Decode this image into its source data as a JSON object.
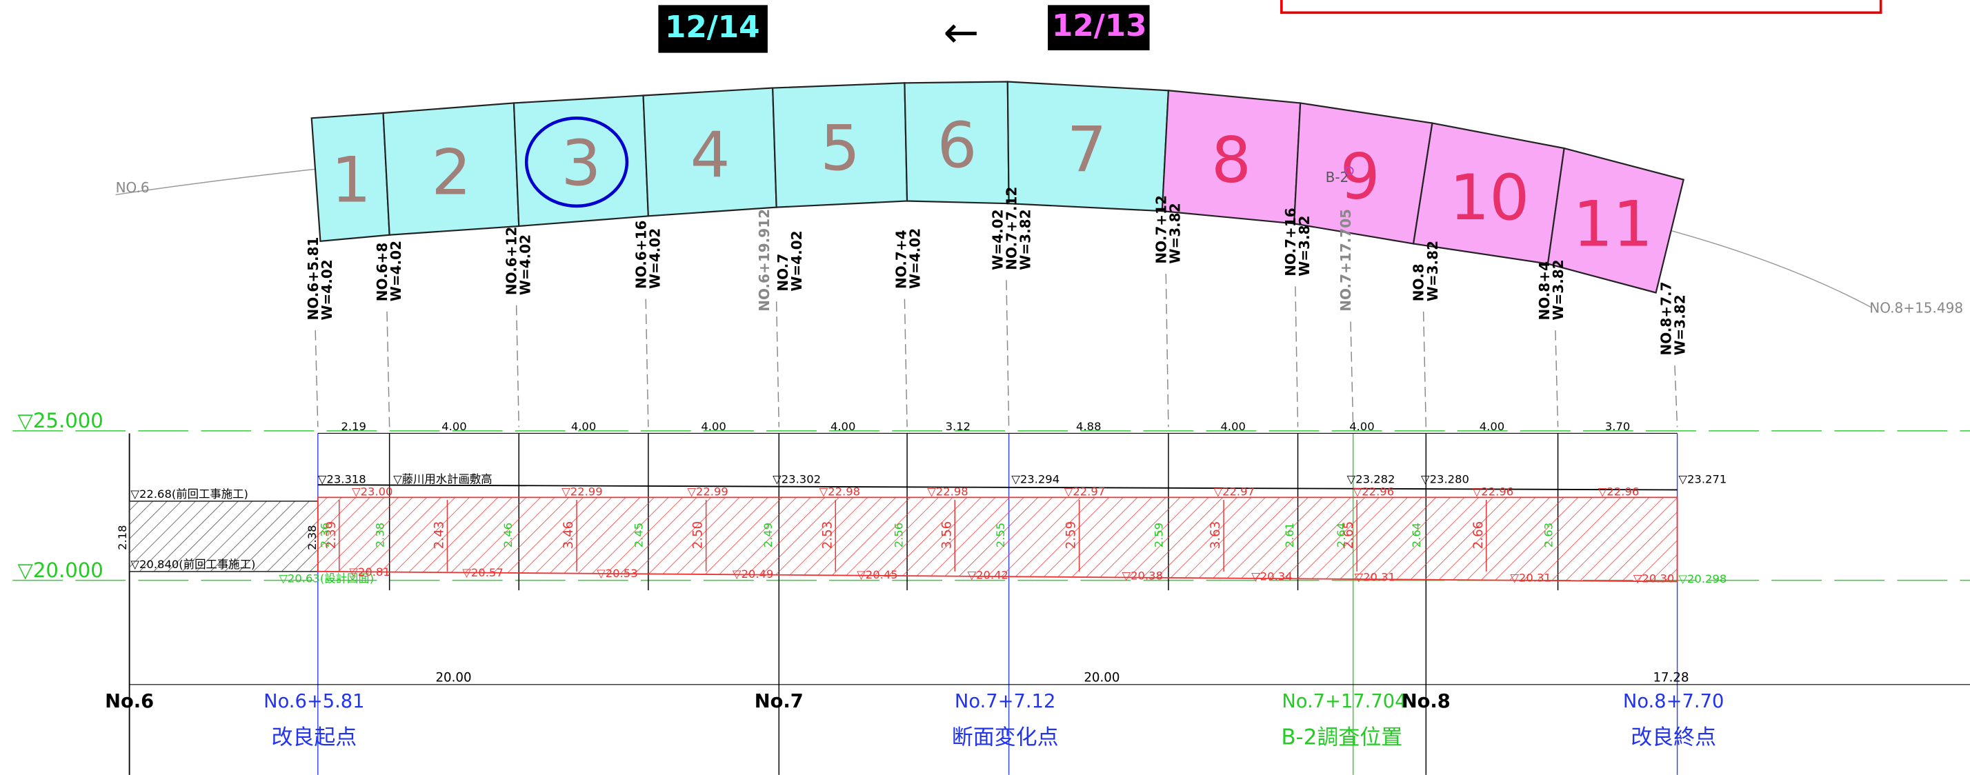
{
  "header": {
    "date_left": "12/14",
    "arrow": "←",
    "date_right": "12/13"
  },
  "plan": {
    "panels": [
      "1",
      "2",
      "3",
      "4",
      "5",
      "6",
      "7",
      "8",
      "9",
      "10",
      "11"
    ],
    "labels": [
      "NO.6",
      "NO.8+15.498",
      "B-2"
    ]
  },
  "stations": [
    [
      "NO.6+5.81",
      "W=4.02"
    ],
    [
      "NO.6+8",
      "W=4.02"
    ],
    [
      "NO.6+12",
      "W=4.02"
    ],
    [
      "NO.6+16",
      "W=4.02"
    ],
    [
      "NO.6+19.912"
    ],
    [
      "NO.7",
      "W=4.02"
    ],
    [
      "NO.7+4",
      "W=4.02"
    ],
    [
      "W=4.02",
      "NO.7+7.12",
      "W=3.82"
    ],
    [
      "NO.7+12",
      "W=3.82"
    ],
    [
      "NO.7+16",
      "W=3.82"
    ],
    [
      "NO.7+17.705"
    ],
    [
      "NO.8",
      "W=3.82"
    ],
    [
      "NO.8+4",
      "W=3.82"
    ],
    [
      "NO.8+7.7",
      "W=3.82"
    ]
  ],
  "section": {
    "levels": [
      "▽25.000",
      "▽20.000"
    ],
    "spans": [
      "2.19",
      "4.00",
      "4.00",
      "4.00",
      "4.00",
      "3.12",
      "4.88",
      "4.00",
      "4.00",
      "4.00",
      "3.70"
    ],
    "totals": [
      "20.00",
      "20.00",
      "17.28"
    ],
    "notes": [
      "▽22.68(前回工事施工)",
      "▽20.840(前回工事施工)",
      "▽20.63(設計図面)",
      "▽藤川用水計画敷高",
      "2.18",
      "2.38"
    ],
    "crown": [
      "▽23.318",
      "▽23.302",
      "▽23.294",
      "▽23.282",
      "▽23.280",
      "▽23.271"
    ],
    "plan_top": [
      "▽23.00",
      "▽22.99",
      "▽22.99",
      "▽22.98",
      "▽22.98",
      "▽22.97",
      "▽22.97",
      "▽22.96",
      "▽22.96",
      "▽22.96"
    ],
    "bottom": [
      "▽20.81",
      "▽20.57",
      "▽20.53",
      "▽20.49",
      "▽20.45",
      "▽20.42",
      "▽20.38",
      "▽20.34",
      "▽20.31",
      "▽20.31",
      "▽20.30",
      "▽20.298"
    ],
    "depths": [
      "2.39",
      "2.43",
      "3.46",
      "2.50",
      "2.53",
      "3.56",
      "2.59",
      "3.63",
      "2.65",
      "2.66"
    ],
    "green_depths": [
      "2.36",
      "2.38",
      "2.46",
      "2.45",
      "2.49",
      "2.56",
      "2.55",
      "2.59",
      "2.61",
      "2.64",
      "2.64",
      "2.63"
    ]
  },
  "bottom_labels": {
    "stations": [
      "No.6",
      "No.6+5.81",
      "No.7",
      "No.7+7.12",
      "No.7+17.704",
      "No.8",
      "No.8+7.70"
    ],
    "notes": [
      "改良起点",
      "断面変化点",
      "B-2調査位置",
      "改良終点"
    ]
  }
}
